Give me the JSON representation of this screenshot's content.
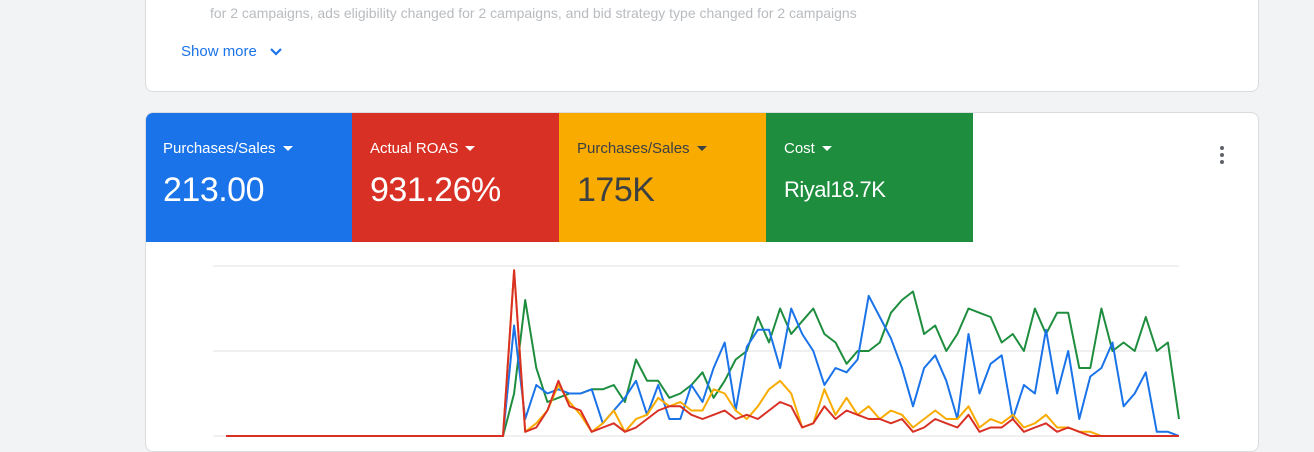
{
  "notice": {
    "faded_line": "for 2 campaigns, ads eligibility changed for 2 campaigns, and bid strategy type changed for 2 campaigns",
    "show_more_label": "Show more"
  },
  "metrics": [
    {
      "label": "Purchases/Sales",
      "value": "213.00",
      "bg": "#1a73e8",
      "fg": "#ffffff"
    },
    {
      "label": "Actual ROAS",
      "value": "931.26%",
      "bg": "#d93025",
      "fg": "#ffffff"
    },
    {
      "label": "Purchases/Sales",
      "value": "175K",
      "bg": "#f9ab00",
      "fg": "#3c4043"
    },
    {
      "label": "Cost",
      "value": "Riyal18.7K",
      "bg": "#1e8e3e",
      "fg": "#ffffff"
    }
  ],
  "chart_data": {
    "type": "line",
    "grid": true,
    "series": [
      {
        "color": "#1e8e3e",
        "values": [
          0,
          0,
          0,
          0,
          0,
          0,
          0,
          0,
          0,
          0,
          0,
          0,
          0,
          0,
          0,
          0,
          0,
          0,
          0,
          0,
          0,
          0,
          0,
          0,
          0,
          0,
          0.5,
          1.6,
          0.8,
          0.4,
          0.45,
          0.5,
          0.5,
          0.55,
          0.55,
          0.6,
          0.4,
          0.9,
          0.65,
          0.65,
          0.45,
          0.5,
          0.6,
          0.75,
          0.45,
          0.65,
          0.9,
          1.0,
          1.4,
          1.1,
          1.5,
          1.2,
          1.35,
          1.5,
          1.2,
          1.1,
          0.85,
          1.0,
          1.0,
          1.1,
          1.45,
          1.6,
          1.7,
          1.2,
          1.3,
          1.0,
          1.2,
          1.5,
          1.45,
          1.4,
          1.1,
          1.2,
          1.0,
          1.5,
          1.2,
          1.45,
          1.45,
          0.8,
          0.8,
          1.5,
          1.0,
          1.1,
          1.0,
          1.4,
          1.0,
          1.1,
          0.2
        ]
      },
      {
        "color": "#1a73e8",
        "values": [
          0,
          0,
          0,
          0,
          0,
          0,
          0,
          0,
          0,
          0,
          0,
          0,
          0,
          0,
          0,
          0,
          0,
          0,
          0,
          0,
          0,
          0,
          0,
          0,
          0,
          0,
          1.3,
          0.2,
          0.6,
          0.5,
          0.55,
          0.5,
          0.5,
          0.55,
          0.15,
          0.3,
          0.45,
          0.65,
          0.25,
          0.6,
          0.2,
          0.2,
          0.6,
          0.4,
          0.8,
          1.1,
          0.3,
          1.05,
          1.25,
          1.25,
          0.8,
          1.5,
          1.2,
          1.0,
          0.6,
          0.8,
          0.75,
          0.9,
          1.65,
          1.4,
          1.15,
          0.8,
          0.35,
          0.8,
          0.95,
          0.65,
          0.2,
          1.2,
          0.5,
          0.85,
          0.95,
          0.2,
          0.6,
          0.5,
          1.25,
          0.5,
          1.0,
          0.2,
          0.7,
          0.8,
          1.1,
          0.35,
          0.5,
          0.75,
          0.05,
          0.05,
          0.0
        ]
      },
      {
        "color": "#f9ab00",
        "values": [
          0,
          0,
          0,
          0,
          0,
          0,
          0,
          0,
          0,
          0,
          0,
          0,
          0,
          0,
          0,
          0,
          0,
          0,
          0,
          0,
          0,
          0,
          0,
          0,
          0,
          0,
          1.95,
          0.05,
          0.15,
          0.3,
          0.6,
          0.4,
          0.25,
          0.05,
          0.15,
          0.3,
          0.05,
          0.2,
          0.25,
          0.45,
          0.35,
          0.4,
          0.3,
          0.3,
          0.55,
          0.5,
          0.3,
          0.2,
          0.35,
          0.55,
          0.65,
          0.5,
          0.1,
          0.15,
          0.55,
          0.25,
          0.45,
          0.25,
          0.35,
          0.2,
          0.3,
          0.25,
          0.1,
          0.2,
          0.3,
          0.2,
          0.2,
          0.35,
          0.1,
          0.2,
          0.15,
          0.25,
          0.1,
          0.15,
          0.25,
          0.1,
          0.1,
          0.05,
          0.05,
          0.0,
          0.0,
          0.0,
          0.0,
          0.0,
          0.0,
          0.0,
          0.0
        ]
      },
      {
        "color": "#d93025",
        "values": [
          0,
          0,
          0,
          0,
          0,
          0,
          0,
          0,
          0,
          0,
          0,
          0,
          0,
          0,
          0,
          0,
          0,
          0,
          0,
          0,
          0,
          0,
          0,
          0,
          0,
          0,
          1.95,
          0.05,
          0.1,
          0.3,
          0.65,
          0.35,
          0.3,
          0.05,
          0.1,
          0.15,
          0.05,
          0.1,
          0.2,
          0.3,
          0.35,
          0.35,
          0.25,
          0.2,
          0.25,
          0.3,
          0.2,
          0.25,
          0.2,
          0.3,
          0.4,
          0.35,
          0.1,
          0.15,
          0.35,
          0.2,
          0.3,
          0.25,
          0.2,
          0.2,
          0.15,
          0.2,
          0.05,
          0.1,
          0.2,
          0.15,
          0.1,
          0.25,
          0.05,
          0.1,
          0.1,
          0.2,
          0.05,
          0.1,
          0.15,
          0.05,
          0.1,
          0.05,
          0.0,
          0.0,
          0.0,
          0.0,
          0.0,
          0.0,
          0.0,
          0.0,
          0.0
        ]
      }
    ],
    "ylim": [
      0,
      2.0
    ]
  }
}
